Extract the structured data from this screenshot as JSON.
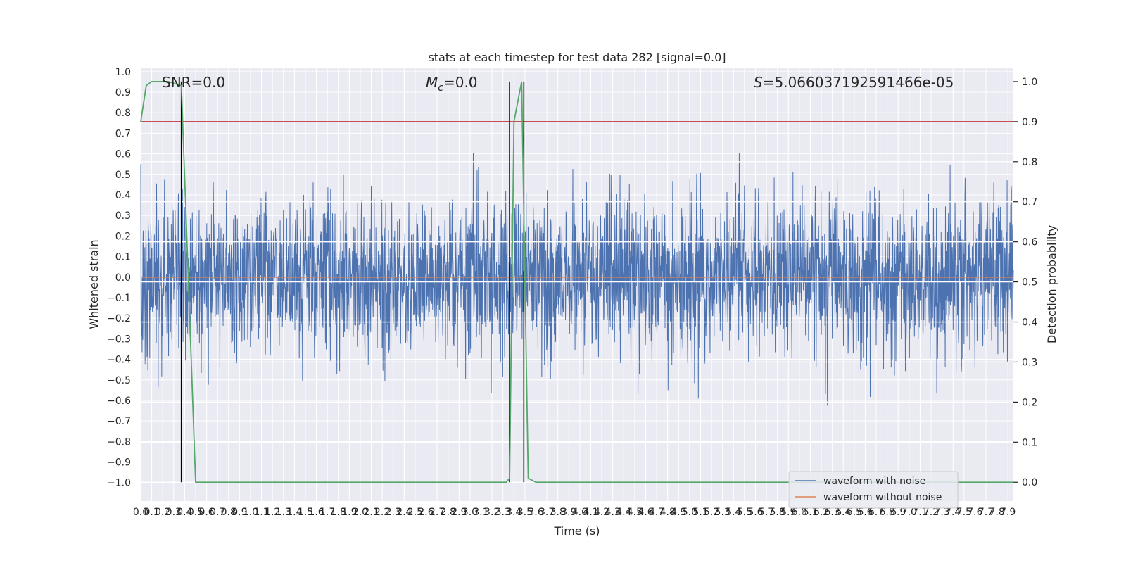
{
  "chart_data": {
    "type": "line",
    "title": "stats at each timestep for test data 282 [signal=0.0]",
    "xlabel": "Time (s)",
    "ylabel": "Whitened strain",
    "y2label": "Detection probability",
    "xlim": [
      0.0,
      7.95
    ],
    "ylim": [
      -1.09,
      1.02
    ],
    "y2lim": [
      -0.047,
      1.035
    ],
    "x_ticks": [
      0.0,
      0.1,
      0.2,
      0.3,
      0.4,
      0.5,
      0.6,
      0.7,
      0.8,
      0.9,
      1.0,
      1.1,
      1.2,
      1.3,
      1.4,
      1.5,
      1.6,
      1.7,
      1.8,
      1.9,
      2.0,
      2.1,
      2.2,
      2.3,
      2.4,
      2.5,
      2.6,
      2.7,
      2.8,
      2.9,
      3.0,
      3.1,
      3.2,
      3.3,
      3.4,
      3.5,
      3.6,
      3.7,
      3.8,
      3.9,
      4.0,
      4.1,
      4.2,
      4.3,
      4.4,
      4.5,
      4.6,
      4.7,
      4.8,
      4.9,
      5.0,
      5.1,
      5.2,
      5.3,
      5.4,
      5.5,
      5.6,
      5.7,
      5.8,
      5.9,
      6.0,
      6.1,
      6.2,
      6.3,
      6.4,
      6.5,
      6.6,
      6.7,
      6.8,
      6.9,
      7.0,
      7.1,
      7.2,
      7.3,
      7.4,
      7.5,
      7.6,
      7.7,
      7.8,
      7.9
    ],
    "x_tick_labels": [
      "0.0",
      "0.1",
      "0.2",
      "0.3",
      "0.4",
      "0.5",
      "0.6",
      "0.7",
      "0.8",
      "0.9",
      "1.0",
      "1.1",
      "1.2",
      "1.3",
      "1.4",
      "1.5",
      "1.6",
      "1.7",
      "1.8",
      "1.9",
      "2.0",
      "2.1",
      "2.2",
      "2.3",
      "2.4",
      "2.5",
      "2.6",
      "2.7",
      "2.8",
      "2.9",
      "3.0",
      "3.1",
      "3.2",
      "3.3",
      "3.4",
      "3.5",
      "3.6",
      "3.7",
      "3.8",
      "3.9",
      "4.0",
      "4.1",
      "4.2",
      "4.3",
      "4.4",
      "4.5",
      "4.6",
      "4.7",
      "4.8",
      "4.9",
      "5.0",
      "5.1",
      "5.2",
      "5.3",
      "5.4",
      "5.5",
      "5.6",
      "5.7",
      "5.8",
      "5.9",
      "6.0",
      "6.1",
      "6.2",
      "6.3",
      "6.4",
      "6.5",
      "6.6",
      "6.7",
      "6.8",
      "6.9",
      "7.0",
      "7.1",
      "7.2",
      "7.3",
      "7.4",
      "7.5",
      "7.6",
      "7.7",
      "7.8",
      "7.9"
    ],
    "y_ticks": [
      1.0,
      0.9,
      0.8,
      0.7,
      0.6,
      0.5,
      0.4,
      0.3,
      0.2,
      0.1,
      0.0,
      -0.1,
      -0.2,
      -0.3,
      -0.4,
      -0.5,
      -0.6,
      -0.7,
      -0.8,
      -0.9,
      -1.0
    ],
    "y_tick_labels": [
      "1.0",
      "0.9",
      "0.8",
      "0.7",
      "0.6",
      "0.5",
      "0.4",
      "0.3",
      "0.2",
      "0.1",
      "0.0",
      "−0.1",
      "−0.2",
      "−0.3",
      "−0.4",
      "−0.5",
      "−0.6",
      "−0.7",
      "−0.8",
      "−0.9",
      "−1.0"
    ],
    "y2_ticks": [
      1.0,
      0.9,
      0.8,
      0.7,
      0.6,
      0.5,
      0.4,
      0.3,
      0.2,
      0.1,
      0.0
    ],
    "y2_tick_labels": [
      "1.0",
      "0.9",
      "0.8",
      "0.7",
      "0.6",
      "0.5",
      "0.4",
      "0.3",
      "0.2",
      "0.1",
      "0.0"
    ],
    "grid": true,
    "legend_position": "lower right",
    "series": [
      {
        "name": "waveform with noise",
        "axis": "left",
        "color": "#4c72b0",
        "kind": "dense-noise",
        "approx_amplitude": 0.45,
        "max": 0.92,
        "min": -1.0
      },
      {
        "name": "waveform without noise",
        "axis": "left",
        "color": "#dd8452",
        "x": [
          0.0,
          7.95
        ],
        "y": [
          0.0,
          0.0
        ]
      },
      {
        "axis": "right",
        "color": "#55a868",
        "x": [
          0.0,
          0.05,
          0.1,
          0.25,
          0.37,
          0.5,
          3.33,
          3.36,
          3.4,
          3.47,
          3.53,
          3.6,
          7.95
        ],
        "y": [
          0.9,
          0.99,
          1.0,
          1.0,
          0.99,
          0.0,
          0.0,
          0.01,
          0.9,
          1.0,
          0.01,
          0.0,
          0.0
        ]
      }
    ],
    "threshold": {
      "axis": "right",
      "value": 0.9,
      "color": "#c44e52"
    },
    "vlines": [
      0.37,
      3.36,
      3.49
    ],
    "vline_color": "#000000",
    "right_gridlines": [
      0.9,
      0.8,
      0.7,
      0.6,
      0.5,
      0.4,
      0.3,
      0.2,
      0.1,
      0.0
    ],
    "annotations": {
      "snr": "SNR=0.0",
      "mc_symbol": "M",
      "mc_subscript": "c",
      "mc_value": "=0.0",
      "s_symbol": "S",
      "s_value": "=5.066037192591466e-05"
    }
  },
  "colors": {
    "plot_bg": "#eaeaf2",
    "grid": "#ffffff",
    "text": "#262626"
  }
}
